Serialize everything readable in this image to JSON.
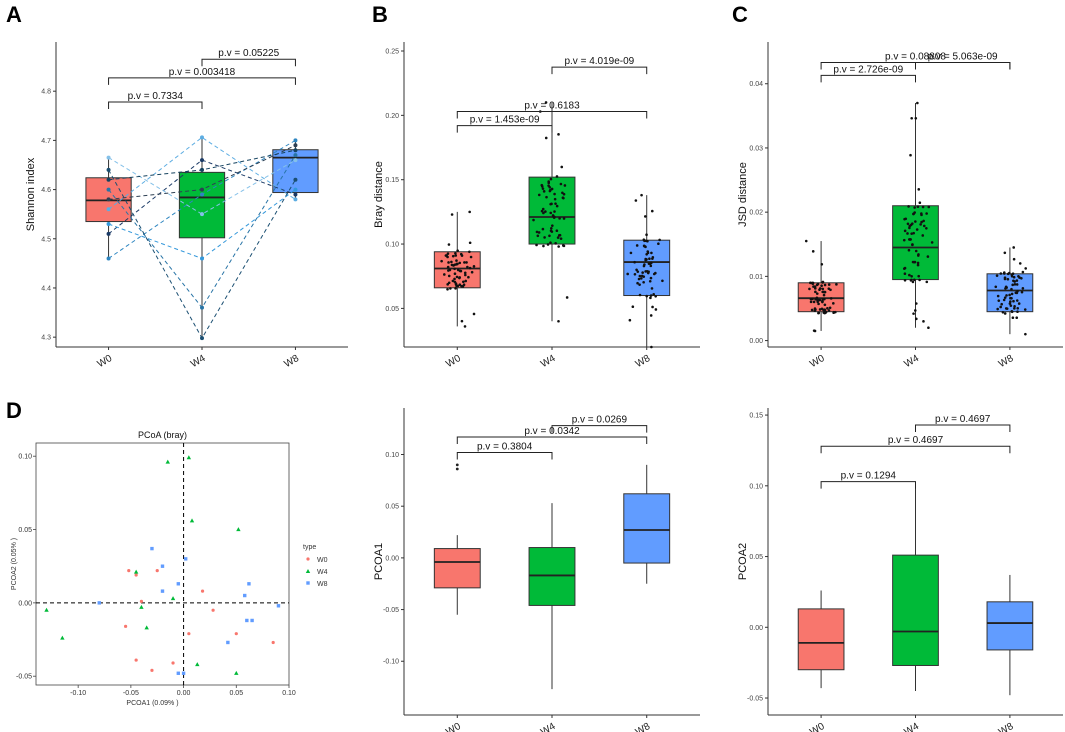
{
  "panel_letters": [
    "A",
    "B",
    "C",
    "D"
  ],
  "colors": {
    "W0": "#F8766D",
    "W4": "#00BA38",
    "W8": "#619CFF"
  },
  "chart_data": [
    {
      "id": "A",
      "type": "box",
      "ylabel": "Shannon index",
      "categories": [
        "W0",
        "W4",
        "W8"
      ],
      "ylim": [
        4.28,
        4.9
      ],
      "yticks": [
        "4.3",
        "4.4",
        "4.5",
        "4.6",
        "4.7",
        "4.8"
      ],
      "boxes": [
        {
          "q1": 4.535,
          "median": 4.578,
          "q3": 4.624,
          "whislo": 4.46,
          "whishi": 4.665
        },
        {
          "q1": 4.502,
          "median": 4.584,
          "q3": 4.635,
          "whislo": 4.298,
          "whishi": 4.706
        },
        {
          "q1": 4.594,
          "median": 4.665,
          "q3": 4.681,
          "whislo": 4.578,
          "whishi": 4.7
        }
      ],
      "paired": [
        [
          4.46,
          4.59,
          4.7
        ],
        [
          4.51,
          4.66,
          4.59
        ],
        [
          4.56,
          4.706,
          4.58
        ],
        [
          4.6,
          4.36,
          4.67
        ],
        [
          4.64,
          4.298,
          4.62
        ],
        [
          4.665,
          4.55,
          4.66
        ],
        [
          4.58,
          4.6,
          4.69
        ],
        [
          4.53,
          4.46,
          4.6
        ],
        [
          4.62,
          4.64,
          4.68
        ]
      ],
      "brackets": [
        {
          "label": "p.v = 0.7334",
          "from": 0,
          "to": 1,
          "y": 4.778
        },
        {
          "label": "p.v = 0.003418",
          "from": 0,
          "to": 2,
          "y": 4.827
        },
        {
          "label": "p.v = 0.05225",
          "from": 1,
          "to": 2,
          "y": 4.865
        }
      ]
    },
    {
      "id": "B",
      "type": "box",
      "ylabel": "Bray distance",
      "categories": [
        "W0",
        "W4",
        "W8"
      ],
      "ylim": [
        0.02,
        0.257
      ],
      "yticks": [
        "0.05",
        "0.10",
        "0.15",
        "0.20",
        "0.25"
      ],
      "boxes": [
        {
          "q1": 0.066,
          "median": 0.081,
          "q3": 0.094,
          "whislo": 0.036,
          "whishi": 0.125
        },
        {
          "q1": 0.1,
          "median": 0.121,
          "q3": 0.152,
          "whislo": 0.04,
          "whishi": 0.21
        },
        {
          "q1": 0.06,
          "median": 0.086,
          "q3": 0.103,
          "whislo": 0.02,
          "whishi": 0.138
        }
      ],
      "brackets": [
        {
          "label": "p.v = 1.453e-09",
          "from": 0,
          "to": 1,
          "y": 0.192
        },
        {
          "label": "p.v = 0.6183",
          "from": 0,
          "to": 2,
          "y": 0.203
        },
        {
          "label": "p.v = 4.019e-09",
          "from": 1,
          "to": 2,
          "y": 0.2375
        }
      ]
    },
    {
      "id": "C",
      "type": "box",
      "ylabel": "JSD distance",
      "categories": [
        "W0",
        "W4",
        "W8"
      ],
      "ylim": [
        -0.001,
        0.0465
      ],
      "yticks": [
        "0.00",
        "0.01",
        "0.02",
        "0.03",
        "0.04"
      ],
      "boxes": [
        {
          "q1": 0.0045,
          "median": 0.0066,
          "q3": 0.009,
          "whislo": 0.0015,
          "whishi": 0.0155
        },
        {
          "q1": 0.0095,
          "median": 0.0145,
          "q3": 0.021,
          "whislo": 0.002,
          "whishi": 0.037
        },
        {
          "q1": 0.0045,
          "median": 0.0078,
          "q3": 0.0104,
          "whislo": 0.001,
          "whishi": 0.0145
        }
      ],
      "brackets": [
        {
          "label": "p.v = 2.726e-09",
          "from": 0,
          "to": 1,
          "y": 0.0413
        },
        {
          "label": "p.v = 0.08808",
          "from": 0,
          "to": 2,
          "y": 0.0433
        },
        {
          "label": "p.v = 5.063e-09",
          "from": 1,
          "to": 2,
          "y": 0.0433
        }
      ]
    },
    {
      "id": "PCoA",
      "type": "scatter",
      "title": "PCoA (bray)",
      "xlabel": "PCOA1 (0.09% )",
      "ylabel": "PCOA2 (0.05% )",
      "xlim": [
        -0.14,
        0.1
      ],
      "ylim": [
        -0.056,
        0.109
      ],
      "xticks": [
        "-0.10",
        "-0.05",
        "0.00",
        "0.05",
        "0.10"
      ],
      "yticks": [
        "-0.05",
        "0.00",
        "0.05",
        "0.10"
      ],
      "legend_title": "type",
      "legend": [
        "W0",
        "W4",
        "W8"
      ],
      "points": {
        "W0": [
          [
            -0.052,
            0.022
          ],
          [
            -0.045,
            0.019
          ],
          [
            -0.04,
            0.001
          ],
          [
            -0.055,
            -0.016
          ],
          [
            -0.045,
            -0.039
          ],
          [
            -0.03,
            -0.046
          ],
          [
            -0.01,
            -0.041
          ],
          [
            0.018,
            0.008
          ],
          [
            0.028,
            -0.005
          ],
          [
            0.05,
            -0.021
          ],
          [
            0.085,
            -0.027
          ],
          [
            0.005,
            -0.021
          ],
          [
            -0.025,
            0.022
          ]
        ],
        "W4": [
          [
            -0.13,
            -0.005
          ],
          [
            -0.115,
            -0.024
          ],
          [
            -0.035,
            -0.017
          ],
          [
            -0.015,
            0.096
          ],
          [
            0.005,
            0.099
          ],
          [
            0.008,
            0.056
          ],
          [
            0.052,
            0.05
          ],
          [
            0.013,
            -0.042
          ],
          [
            0.05,
            -0.048
          ],
          [
            -0.01,
            0.003
          ],
          [
            -0.04,
            -0.003
          ],
          [
            -0.045,
            0.021
          ]
        ],
        "W8": [
          [
            -0.08,
            0.0
          ],
          [
            -0.03,
            0.037
          ],
          [
            -0.02,
            0.025
          ],
          [
            0.002,
            0.03
          ],
          [
            -0.005,
            0.013
          ],
          [
            -0.02,
            0.008
          ],
          [
            0.062,
            0.013
          ],
          [
            0.058,
            0.005
          ],
          [
            0.06,
            -0.012
          ],
          [
            0.065,
            -0.012
          ],
          [
            0.042,
            -0.027
          ],
          [
            0.09,
            -0.002
          ],
          [
            0.0,
            -0.048
          ],
          [
            -0.005,
            -0.048
          ]
        ]
      }
    },
    {
      "id": "PCOA1",
      "type": "box",
      "ylabel": "PCOA1",
      "categories": [
        "W0",
        "W4",
        "W8"
      ],
      "ylim": [
        -0.152,
        0.145
      ],
      "yticks": [
        "-0.10",
        "-0.05",
        "0.00",
        "0.05",
        "0.10"
      ],
      "boxes": [
        {
          "q1": -0.029,
          "median": -0.004,
          "q3": 0.009,
          "whislo": -0.055,
          "whishi": 0.022
        },
        {
          "q1": -0.046,
          "median": -0.017,
          "q3": 0.01,
          "whislo": -0.127,
          "whishi": 0.053
        },
        {
          "q1": -0.005,
          "median": 0.027,
          "q3": 0.062,
          "whislo": -0.025,
          "whishi": 0.09
        }
      ],
      "outliers": [
        {
          "cat": 0,
          "y": 0.09
        },
        {
          "cat": 0,
          "y": 0.086
        }
      ],
      "brackets": [
        {
          "label": "p.v = 0.3804",
          "from": 0,
          "to": 1,
          "y": 0.102
        },
        {
          "label": "p.v = 0.0342",
          "from": 0,
          "to": 2,
          "y": 0.117
        },
        {
          "label": "p.v = 0.0269",
          "from": 1,
          "to": 2,
          "y": 0.128
        }
      ]
    },
    {
      "id": "PCOA2",
      "type": "box",
      "ylabel": "PCOA2",
      "categories": [
        "W0",
        "W4",
        "W8"
      ],
      "ylim": [
        -0.062,
        0.155
      ],
      "yticks": [
        "-0.05",
        "0.00",
        "0.05",
        "0.10",
        "0.15"
      ],
      "boxes": [
        {
          "q1": -0.03,
          "median": -0.011,
          "q3": 0.013,
          "whislo": -0.043,
          "whishi": 0.026
        },
        {
          "q1": -0.027,
          "median": -0.003,
          "q3": 0.051,
          "whislo": -0.045,
          "whishi": 0.103
        },
        {
          "q1": -0.016,
          "median": 0.003,
          "q3": 0.018,
          "whislo": -0.048,
          "whishi": 0.037
        }
      ],
      "brackets": [
        {
          "label": "p.v = 0.1294",
          "from": 0,
          "to": 1,
          "y": 0.103
        },
        {
          "label": "p.v = 0.4697",
          "from": 0,
          "to": 2,
          "y": 0.128
        },
        {
          "label": "p.v = 0.4697",
          "from": 1,
          "to": 2,
          "y": 0.143
        }
      ]
    }
  ]
}
